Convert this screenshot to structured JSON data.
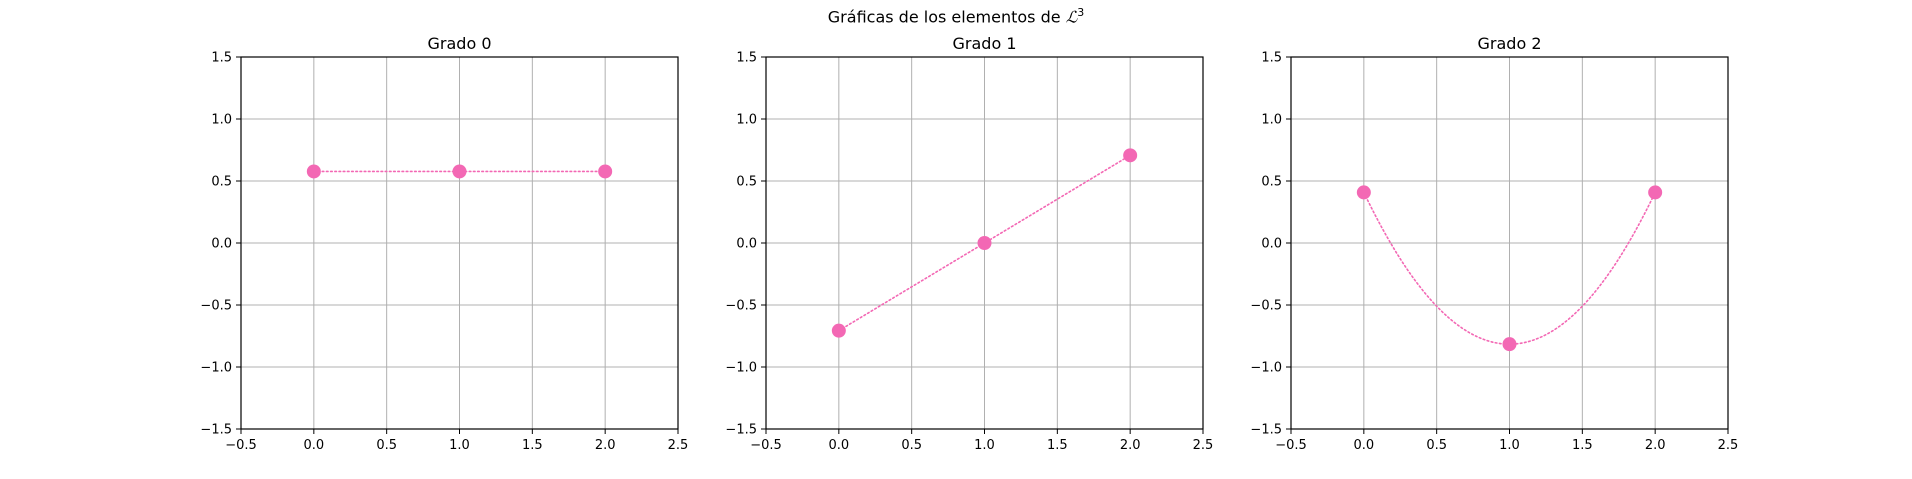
{
  "figure": {
    "suptitle_text": "Gráficas de los elementos de ",
    "suptitle_symbol": "ℒ",
    "suptitle_sup": "3"
  },
  "style": {
    "marker_color": "#f368b4",
    "line_color": "#f368b4",
    "grid_color": "#b0b0b0",
    "line_style": "dotted"
  },
  "chart_data": [
    {
      "type": "line",
      "title": "Grado 0",
      "x": [
        0,
        1,
        2
      ],
      "y": [
        0.577,
        0.577,
        0.577
      ],
      "curve": "constant",
      "xlim": [
        -0.5,
        2.5
      ],
      "ylim": [
        -1.5,
        1.5
      ],
      "xticks": [
        -0.5,
        0.0,
        0.5,
        1.0,
        1.5,
        2.0,
        2.5
      ],
      "yticks": [
        -1.5,
        -1.0,
        -0.5,
        0.0,
        0.5,
        1.0,
        1.5
      ],
      "xtick_labels": [
        "−0.5",
        "0.0",
        "0.5",
        "1.0",
        "1.5",
        "2.0",
        "2.5"
      ],
      "ytick_labels": [
        "−1.5",
        "−1.0",
        "−0.5",
        "0.0",
        "0.5",
        "1.0",
        "1.5"
      ],
      "grid": true
    },
    {
      "type": "line",
      "title": "Grado 1",
      "x": [
        0,
        1,
        2
      ],
      "y": [
        -0.707,
        0.0,
        0.707
      ],
      "curve": "linear",
      "xlim": [
        -0.5,
        2.5
      ],
      "ylim": [
        -1.5,
        1.5
      ],
      "xticks": [
        -0.5,
        0.0,
        0.5,
        1.0,
        1.5,
        2.0,
        2.5
      ],
      "yticks": [
        -1.5,
        -1.0,
        -0.5,
        0.0,
        0.5,
        1.0,
        1.5
      ],
      "xtick_labels": [
        "−0.5",
        "0.0",
        "0.5",
        "1.0",
        "1.5",
        "2.0",
        "2.5"
      ],
      "ytick_labels": [
        "−1.5",
        "−1.0",
        "−0.5",
        "0.0",
        "0.5",
        "1.0",
        "1.5"
      ],
      "grid": true
    },
    {
      "type": "line",
      "title": "Grado 2",
      "x": [
        0,
        1,
        2
      ],
      "y": [
        0.408,
        -0.816,
        0.408
      ],
      "curve": "quadratic",
      "xlim": [
        -0.5,
        2.5
      ],
      "ylim": [
        -1.5,
        1.5
      ],
      "xticks": [
        -0.5,
        0.0,
        0.5,
        1.0,
        1.5,
        2.0,
        2.5
      ],
      "yticks": [
        -1.5,
        -1.0,
        -0.5,
        0.0,
        0.5,
        1.0,
        1.5
      ],
      "xtick_labels": [
        "−0.5",
        "0.0",
        "0.5",
        "1.0",
        "1.5",
        "2.0",
        "2.5"
      ],
      "ytick_labels": [
        "−1.5",
        "−1.0",
        "−0.5",
        "0.0",
        "0.5",
        "1.0",
        "1.5"
      ],
      "grid": true
    }
  ]
}
